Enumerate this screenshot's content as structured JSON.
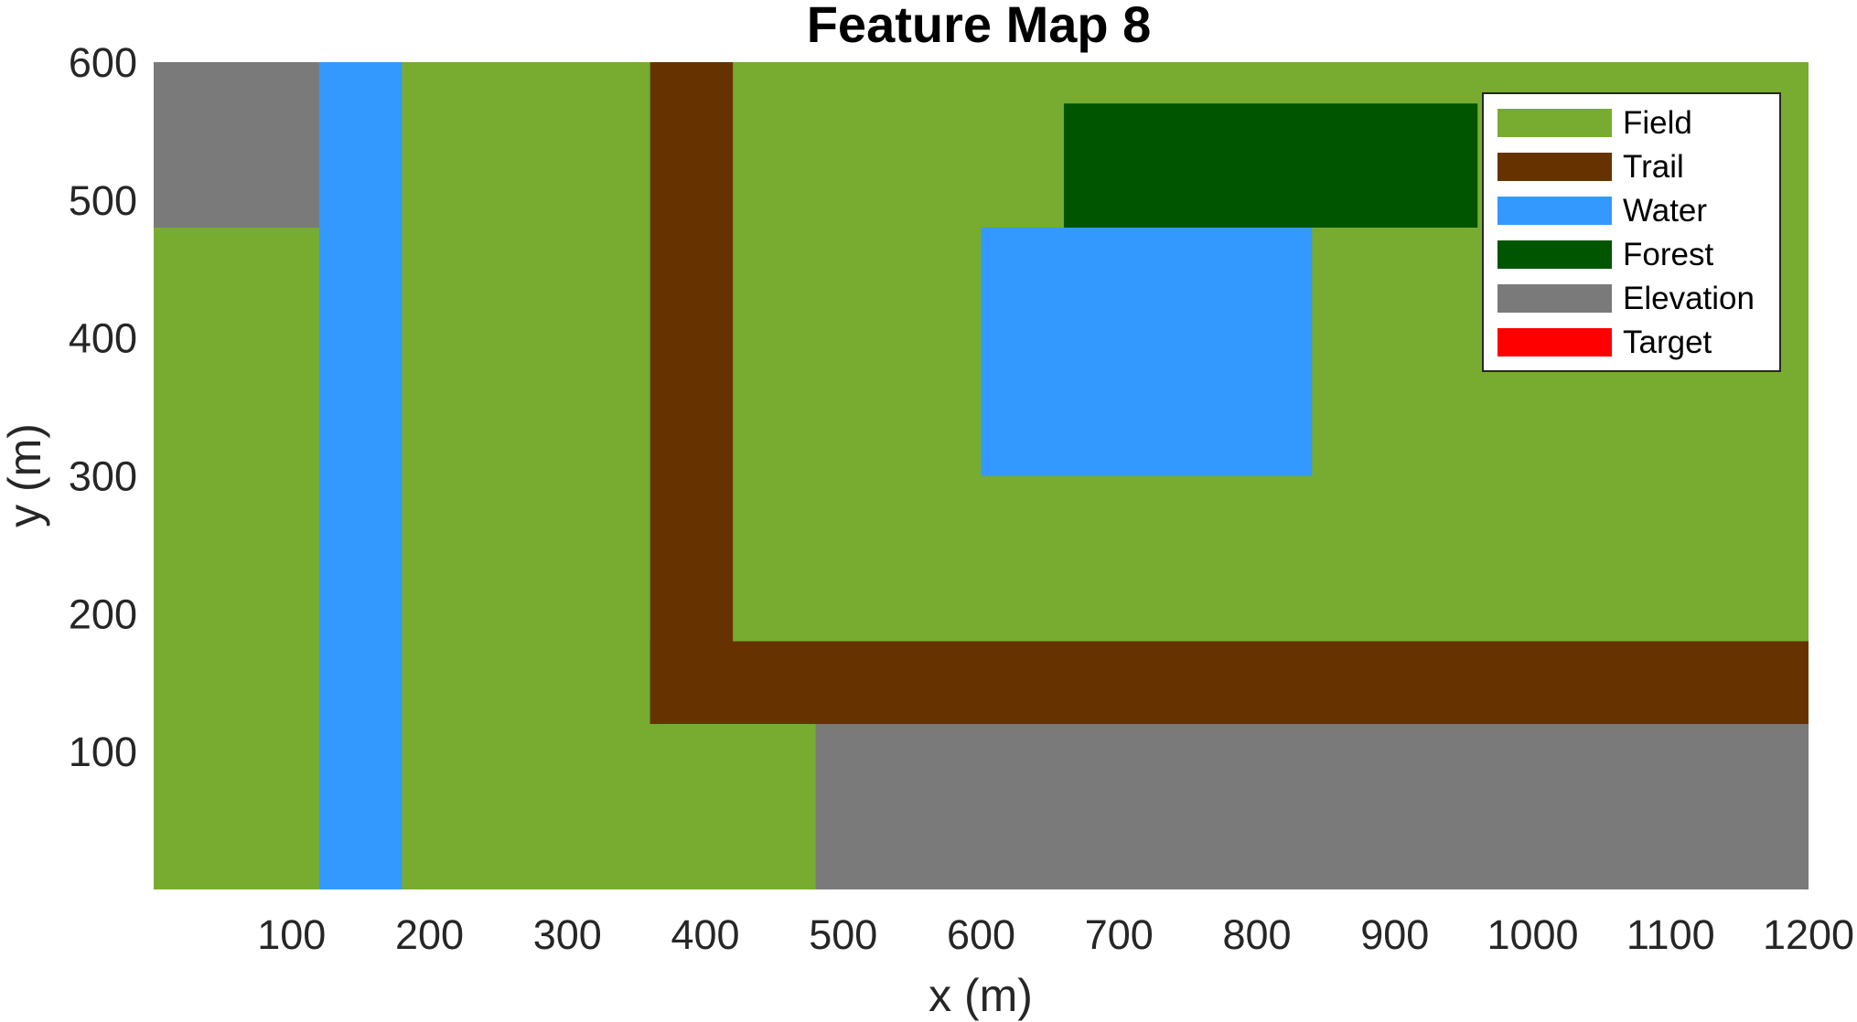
{
  "chart_data": {
    "type": "heatmap",
    "title": "Feature Map 8",
    "xlabel": "x (m)",
    "ylabel": "y (m)",
    "xlim": [
      0,
      1200
    ],
    "ylim": [
      0,
      600
    ],
    "xticks": [
      100,
      200,
      300,
      400,
      500,
      600,
      700,
      800,
      900,
      1000,
      1100,
      1200
    ],
    "yticks": [
      100,
      200,
      300,
      400,
      500,
      600
    ],
    "grid": false,
    "legend_position": "top-right",
    "categories": [
      {
        "name": "Field",
        "color": "#77ac30"
      },
      {
        "name": "Trail",
        "color": "#663300"
      },
      {
        "name": "Water",
        "color": "#3399ff"
      },
      {
        "name": "Forest",
        "color": "#005500"
      },
      {
        "name": "Elevation",
        "color": "#7a7a7a"
      },
      {
        "name": "Target",
        "color": "#ff0000"
      }
    ],
    "regions": [
      {
        "category": "Field",
        "x": [
          0,
          1200
        ],
        "y": [
          0,
          600
        ]
      },
      {
        "category": "Elevation",
        "x": [
          0,
          120
        ],
        "y": [
          480,
          600
        ]
      },
      {
        "category": "Water",
        "x": [
          120,
          180
        ],
        "y": [
          0,
          600
        ]
      },
      {
        "category": "Trail",
        "x": [
          360,
          420
        ],
        "y": [
          120,
          600
        ]
      },
      {
        "category": "Trail",
        "x": [
          360,
          1200
        ],
        "y": [
          120,
          180
        ]
      },
      {
        "category": "Elevation",
        "x": [
          480,
          1200
        ],
        "y": [
          0,
          120
        ]
      },
      {
        "category": "Forest",
        "x": [
          660,
          960
        ],
        "y": [
          480,
          570
        ]
      },
      {
        "category": "Water",
        "x": [
          600,
          840
        ],
        "y": [
          300,
          480
        ]
      }
    ]
  }
}
